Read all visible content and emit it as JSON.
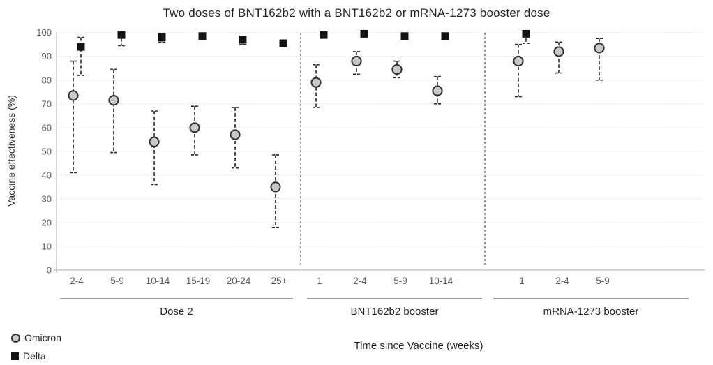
{
  "chart_data": {
    "type": "scatter",
    "title": "Two doses of BNT162b2 with a BNT162b2 or mRNA-1273 booster dose",
    "xlabel": "Time since Vaccine (weeks)",
    "ylabel": "Vaccine effectiveness (%)",
    "ylim": [
      0,
      100
    ],
    "y_tick_step": 10,
    "y_ticks": [
      0,
      10,
      20,
      30,
      40,
      50,
      60,
      70,
      80,
      90,
      100
    ],
    "grid": true,
    "legend_position": "bottom-left",
    "groups": [
      {
        "label": "Dose 2",
        "categories": [
          "2-4",
          "5-9",
          "10-14",
          "15-19",
          "20-24",
          "25+"
        ]
      },
      {
        "label": "BNT162b2 booster",
        "categories": [
          "1",
          "2-4",
          "5-9",
          "10-14"
        ]
      },
      {
        "label": "mRNA-1273 booster",
        "categories": [
          "1",
          "2-4",
          "5-9"
        ]
      }
    ],
    "series": [
      {
        "name": "Omicron",
        "marker": "circle",
        "values": [
          73.5,
          71.5,
          54,
          60,
          57,
          35,
          79,
          88,
          84.5,
          75.5,
          88,
          92,
          93.5
        ],
        "ci_low": [
          41,
          49.5,
          36,
          48.5,
          43,
          18,
          68.5,
          82.5,
          81,
          70,
          73,
          83,
          80
        ],
        "ci_high": [
          88,
          84.5,
          67,
          69,
          68.5,
          48.5,
          86.5,
          92,
          88,
          81.5,
          95,
          96,
          97.5
        ]
      },
      {
        "name": "Delta",
        "marker": "square",
        "values": [
          94,
          99,
          98,
          98.5,
          97,
          95.5,
          99,
          99.5,
          98.5,
          98.5,
          99.5,
          null,
          null
        ],
        "ci_low": [
          82,
          94.5,
          96,
          null,
          95,
          null,
          null,
          null,
          null,
          null,
          95.5,
          null,
          null
        ],
        "ci_high": [
          98,
          100,
          99.5,
          null,
          98.5,
          null,
          null,
          null,
          null,
          null,
          100,
          null,
          null
        ]
      }
    ]
  },
  "colors": {
    "omicron_fill": "#c9c9c9",
    "omicron_stroke": "#2f2f2f",
    "delta_fill": "#141414",
    "gridline": "#d7d7d7",
    "axis_line": "#bfbfbf",
    "tick_text": "#595959",
    "dark_text": "#262626",
    "error_bar": "#2b2b2b",
    "separator": "#404040",
    "group_line": "#7f7f7f"
  }
}
